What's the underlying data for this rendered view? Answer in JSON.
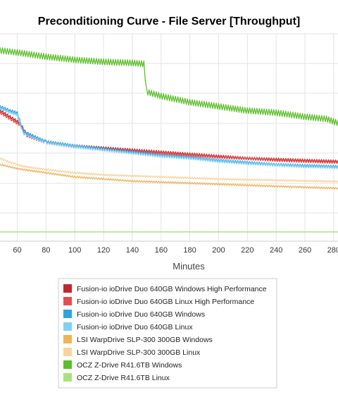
{
  "chart_data": {
    "type": "line",
    "title": "Preconditioning Curve - File Server [Throughput]",
    "xlabel": "Minutes",
    "ylabel": "",
    "x_ticks": [
      60,
      80,
      100,
      120,
      140,
      160,
      180,
      200,
      220,
      240,
      260,
      280
    ],
    "xlim": [
      48,
      283
    ],
    "ylim": [
      0,
      1
    ],
    "grid": true,
    "legend_position": "bottom",
    "series": [
      {
        "name": "Fusion-io ioDrive Duo 640GB Windows High Performance",
        "color": "#c1272d",
        "points": [
          [
            48,
            0.63
          ],
          [
            55,
            0.6
          ],
          [
            62,
            0.57
          ],
          [
            66,
            0.52
          ],
          [
            80,
            0.48
          ],
          [
            100,
            0.46
          ],
          [
            120,
            0.45
          ],
          [
            140,
            0.44
          ],
          [
            160,
            0.43
          ],
          [
            180,
            0.42
          ],
          [
            200,
            0.41
          ],
          [
            220,
            0.4
          ],
          [
            240,
            0.395
          ],
          [
            260,
            0.39
          ],
          [
            283,
            0.385
          ]
        ]
      },
      {
        "name": "Fusion-io ioDrive Duo 640GB Linux High Performance",
        "color": "#e84d4d",
        "points": [
          [
            48,
            0.62
          ],
          [
            55,
            0.59
          ],
          [
            62,
            0.56
          ],
          [
            66,
            0.51
          ],
          [
            80,
            0.475
          ],
          [
            100,
            0.455
          ],
          [
            120,
            0.445
          ],
          [
            140,
            0.435
          ],
          [
            160,
            0.425
          ],
          [
            180,
            0.415
          ],
          [
            200,
            0.405
          ],
          [
            220,
            0.398
          ],
          [
            240,
            0.39
          ],
          [
            260,
            0.385
          ],
          [
            283,
            0.38
          ]
        ]
      },
      {
        "name": "Fusion-io ioDrive Duo 640GB Windows",
        "color": "#2ea3e3",
        "points": [
          [
            48,
            0.65
          ],
          [
            55,
            0.63
          ],
          [
            60,
            0.62
          ],
          [
            64,
            0.53
          ],
          [
            80,
            0.48
          ],
          [
            100,
            0.46
          ],
          [
            120,
            0.445
          ],
          [
            140,
            0.43
          ],
          [
            160,
            0.415
          ],
          [
            180,
            0.405
          ],
          [
            200,
            0.39
          ],
          [
            220,
            0.38
          ],
          [
            240,
            0.37
          ],
          [
            260,
            0.365
          ],
          [
            283,
            0.36
          ]
        ]
      },
      {
        "name": "Fusion-io ioDrive Duo 640GB Linux",
        "color": "#7fd1f5",
        "points": [
          [
            48,
            0.64
          ],
          [
            55,
            0.62
          ],
          [
            60,
            0.61
          ],
          [
            64,
            0.52
          ],
          [
            80,
            0.475
          ],
          [
            100,
            0.455
          ],
          [
            120,
            0.44
          ],
          [
            140,
            0.425
          ],
          [
            160,
            0.41
          ],
          [
            180,
            0.4
          ],
          [
            200,
            0.385
          ],
          [
            220,
            0.375
          ],
          [
            240,
            0.367
          ],
          [
            260,
            0.36
          ],
          [
            283,
            0.355
          ]
        ]
      },
      {
        "name": "LSI WarpDrive SLP-300 300GB Windows",
        "color": "#f0b35a",
        "points": [
          [
            48,
            0.37
          ],
          [
            60,
            0.35
          ],
          [
            70,
            0.34
          ],
          [
            80,
            0.33
          ],
          [
            100,
            0.31
          ],
          [
            120,
            0.3
          ],
          [
            140,
            0.29
          ],
          [
            160,
            0.285
          ],
          [
            180,
            0.28
          ],
          [
            200,
            0.275
          ],
          [
            220,
            0.27
          ],
          [
            240,
            0.265
          ],
          [
            260,
            0.26
          ],
          [
            283,
            0.255
          ]
        ]
      },
      {
        "name": "LSI WarpDrive SLP-300 300GB Linux",
        "color": "#f8d39c",
        "points": [
          [
            48,
            0.4
          ],
          [
            55,
            0.38
          ],
          [
            60,
            0.37
          ],
          [
            65,
            0.36
          ],
          [
            70,
            0.355
          ],
          [
            80,
            0.345
          ],
          [
            100,
            0.33
          ],
          [
            120,
            0.32
          ],
          [
            140,
            0.315
          ],
          [
            160,
            0.31
          ],
          [
            180,
            0.305
          ],
          [
            200,
            0.3
          ],
          [
            220,
            0.297
          ],
          [
            240,
            0.294
          ],
          [
            260,
            0.291
          ],
          [
            283,
            0.288
          ]
        ]
      },
      {
        "name": "OCZ Z-Drive R41.6TB Windows",
        "color": "#5bbf2a",
        "points": [
          [
            48,
            0.92
          ],
          [
            60,
            0.91
          ],
          [
            80,
            0.89
          ],
          [
            100,
            0.875
          ],
          [
            120,
            0.865
          ],
          [
            140,
            0.86
          ],
          [
            148,
            0.855
          ],
          [
            150,
            0.72
          ],
          [
            160,
            0.7
          ],
          [
            180,
            0.67
          ],
          [
            200,
            0.65
          ],
          [
            220,
            0.63
          ],
          [
            240,
            0.62
          ],
          [
            260,
            0.6
          ],
          [
            275,
            0.59
          ],
          [
            283,
            0.57
          ]
        ]
      },
      {
        "name": "OCZ Z-Drive R41.6TB Linux",
        "color": "#a9e07e",
        "points": [
          [
            48,
            0.045
          ],
          [
            283,
            0.045
          ]
        ]
      }
    ]
  }
}
